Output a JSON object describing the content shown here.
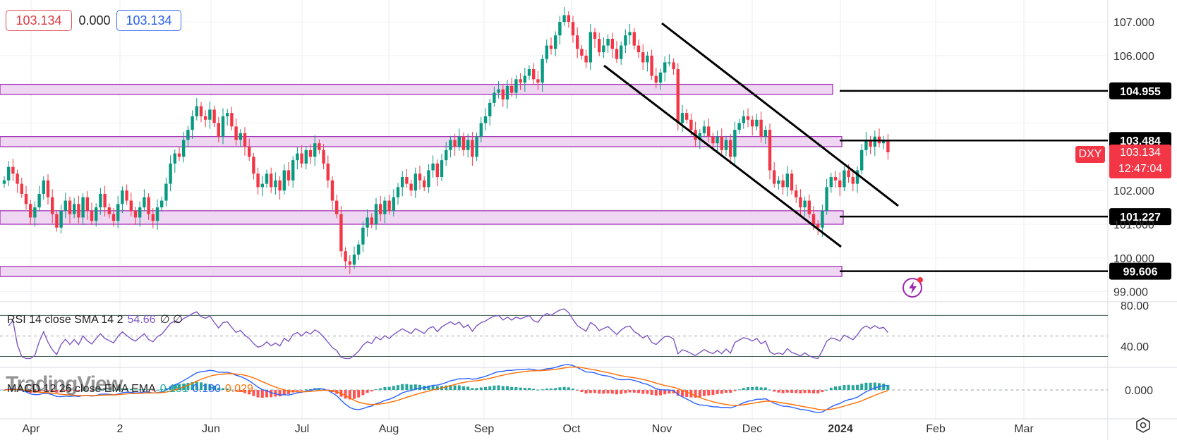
{
  "quote": {
    "bid": "103.134",
    "spread": "0.000",
    "ask": "103.134"
  },
  "symbol": "DXY",
  "last_price": "103.134",
  "countdown": "12:47:04",
  "watermark": "TradingView",
  "rsi_label": {
    "name": "RSI 14 close SMA 14 2",
    "value": "54.66",
    "extra": "∅ ∅"
  },
  "macd_label": {
    "name": "MACD 12 26 close EMA EMA",
    "hist": "0.151",
    "macd": "0.180",
    "signal": "0.029"
  },
  "colors": {
    "up": "#089981",
    "down": "#f23645",
    "zone_fill": "#efd6f2",
    "zone_border": "#9c27b0",
    "rsi": "#7e57c2",
    "macd": "#2962ff",
    "signal": "#ff6d00",
    "line": "#000000"
  },
  "chart_data": {
    "type": "candlestick",
    "title": "",
    "ylim": [
      98.7,
      107.65
    ],
    "y_ticks": [
      "107.000",
      "106.000",
      "102.000",
      "101.000",
      "100.000",
      "99.000"
    ],
    "x_ticks": [
      "Apr",
      "2",
      "Jun",
      "Jul",
      "Aug",
      "Sep",
      "Oct",
      "Nov",
      "Dec",
      "2024",
      "Feb",
      "Mar"
    ],
    "price_levels": [
      {
        "label": "104.955",
        "value": 104.955
      },
      {
        "label": "103.484",
        "value": 103.484
      },
      {
        "label": "101.227",
        "value": 101.227
      },
      {
        "label": "99.606",
        "value": 99.606
      }
    ],
    "zones": [
      [
        104.85,
        105.15
      ],
      [
        103.3,
        103.6
      ],
      [
        101.0,
        101.4
      ],
      [
        99.45,
        99.75
      ]
    ],
    "channel": [
      {
        "from": [
          "Nov 1",
          106.9
        ],
        "to": [
          "Jan 19",
          101.55
        ]
      },
      {
        "from": [
          "Oct 11",
          105.75
        ],
        "to": [
          "Dec 29",
          100.35
        ]
      }
    ],
    "closes": [
      102.3,
      102.7,
      102.5,
      102.2,
      101.9,
      101.6,
      101.2,
      101.5,
      101.9,
      102.3,
      101.8,
      101.3,
      100.9,
      101.4,
      101.7,
      101.3,
      101.6,
      101.2,
      101.8,
      101.4,
      101.1,
      101.5,
      101.9,
      101.5,
      101.3,
      101.1,
      101.6,
      102.0,
      101.7,
      101.4,
      101.2,
      101.5,
      101.8,
      101.3,
      101.1,
      101.5,
      101.7,
      102.2,
      102.8,
      103.1,
      103.0,
      103.5,
      103.8,
      104.2,
      104.5,
      104.2,
      104.1,
      104.4,
      104.0,
      103.6,
      104.2,
      104.3,
      103.9,
      103.5,
      103.7,
      103.3,
      103.0,
      102.5,
      102.1,
      102.2,
      102.5,
      102.1,
      102.3,
      102.0,
      102.6,
      102.3,
      102.9,
      103.1,
      102.8,
      103.2,
      103.0,
      103.4,
      103.2,
      102.8,
      102.3,
      101.7,
      101.3,
      100.2,
      99.9,
      99.8,
      100.1,
      100.4,
      100.9,
      101.2,
      101.0,
      101.6,
      101.3,
      101.7,
      101.4,
      101.8,
      102.1,
      102.4,
      102.2,
      102.0,
      102.5,
      102.3,
      102.1,
      102.6,
      102.8,
      102.4,
      102.9,
      103.2,
      103.5,
      103.3,
      103.6,
      103.2,
      103.5,
      103.0,
      103.6,
      104.0,
      104.2,
      104.6,
      104.9,
      105.0,
      104.7,
      105.1,
      104.9,
      105.3,
      105.2,
      105.4,
      105.6,
      105.3,
      105.2,
      105.9,
      106.3,
      106.2,
      106.6,
      107.0,
      107.2,
      107.0,
      106.6,
      106.2,
      106.0,
      105.8,
      106.7,
      106.5,
      106.1,
      106.3,
      106.5,
      106.2,
      105.9,
      106.3,
      106.6,
      106.7,
      106.3,
      106.1,
      105.8,
      106.0,
      105.4,
      105.2,
      105.5,
      105.8,
      105.8,
      105.6,
      104.0,
      104.3,
      104.1,
      103.8,
      103.5,
      103.7,
      103.9,
      103.6,
      103.4,
      103.6,
      103.2,
      103.5,
      103.0,
      103.8,
      104.0,
      104.2,
      104.1,
      103.9,
      104.1,
      103.6,
      103.8,
      102.6,
      102.2,
      102.3,
      102.1,
      102.5,
      102.0,
      101.8,
      101.5,
      101.7,
      101.3,
      101.0,
      100.9,
      101.4,
      102.1,
      102.4,
      102.3,
      102.1,
      102.6,
      102.4,
      102.2,
      102.6,
      103.2,
      103.5,
      103.3,
      103.6,
      103.4,
      103.5,
      103.134
    ],
    "rsi": {
      "ylim": [
        20,
        82
      ],
      "ticks": [
        "80.00",
        "40.00"
      ],
      "bands": [
        70,
        30
      ],
      "mid": 50
    },
    "macd": {
      "ylim": [
        -0.9,
        0.8
      ],
      "ticks": [
        "0.000"
      ]
    }
  }
}
